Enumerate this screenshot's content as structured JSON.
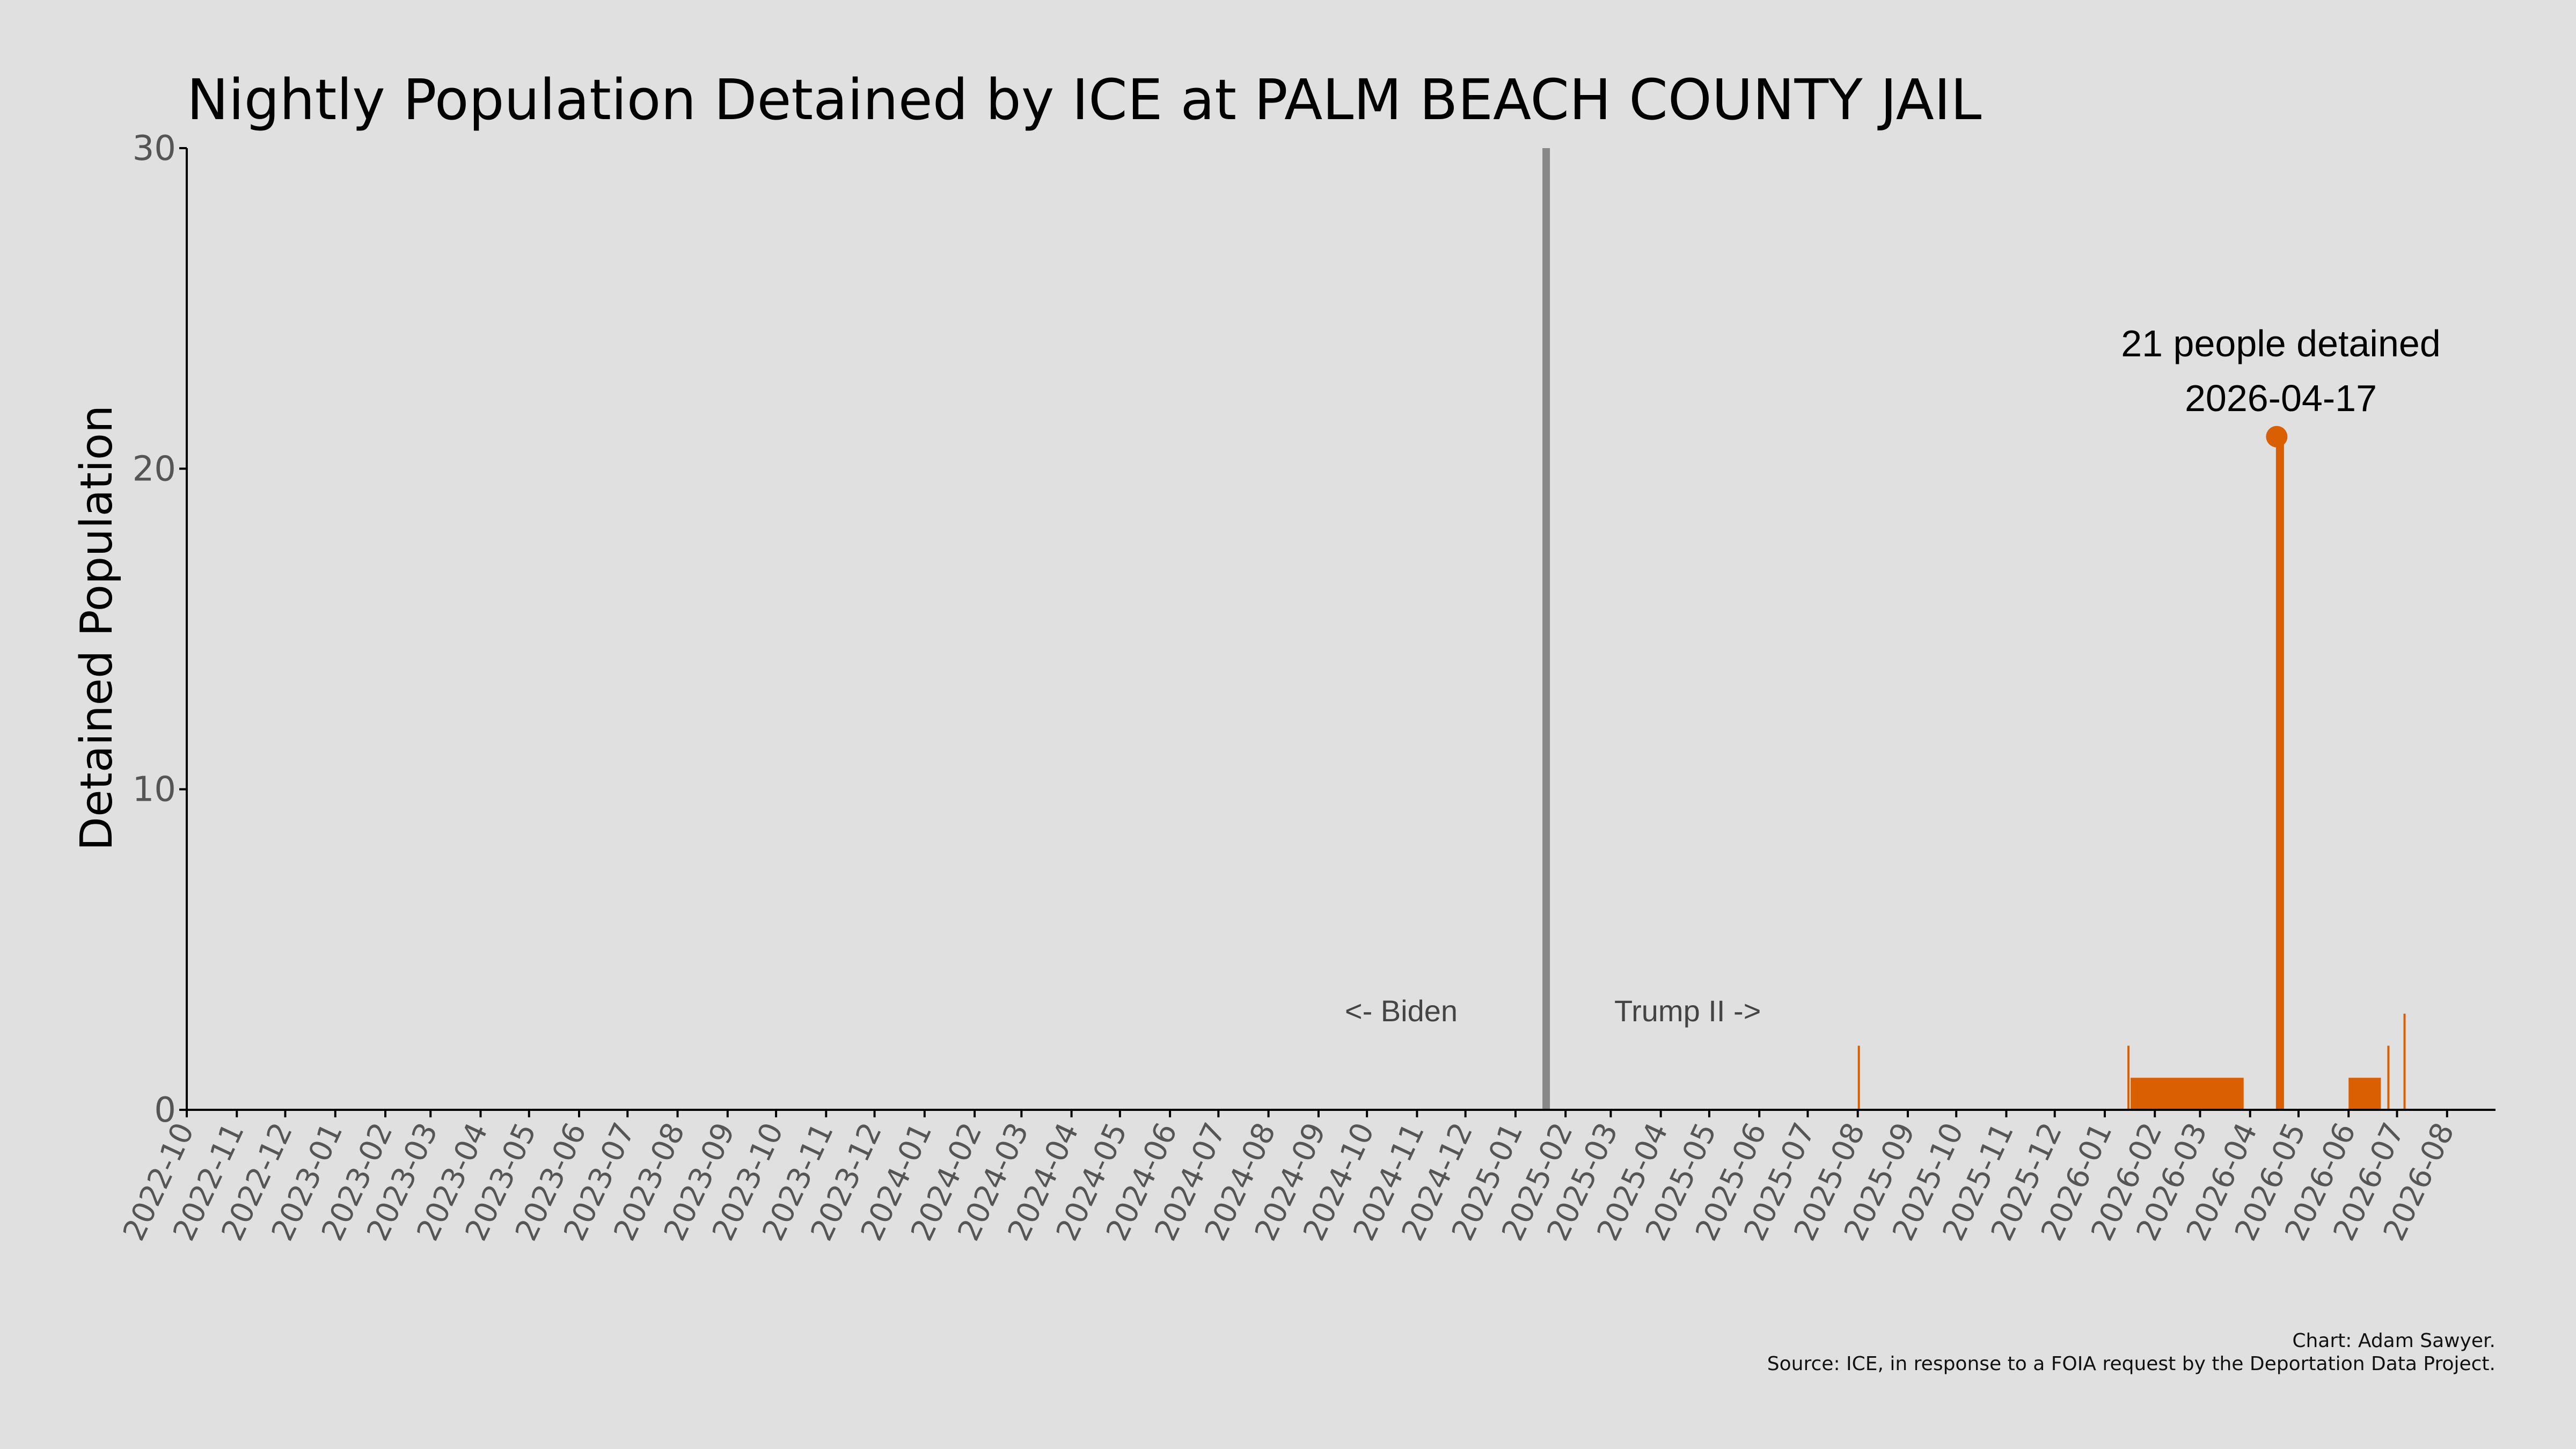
{
  "chart_data": {
    "type": "bar",
    "title": "Nightly Population Detained by ICE at PALM BEACH COUNTY JAIL",
    "xlabel": "",
    "ylabel": "Detained Population",
    "ylim": [
      0,
      30
    ],
    "yticks": [
      0,
      10,
      20,
      30
    ],
    "xlim": [
      "2022-10-01",
      "2026-08-31"
    ],
    "xticks": [
      "2022-10",
      "2022-11",
      "2022-12",
      "2023-01",
      "2023-02",
      "2023-03",
      "2023-04",
      "2023-05",
      "2023-06",
      "2023-07",
      "2023-08",
      "2023-09",
      "2023-10",
      "2023-11",
      "2023-12",
      "2024-01",
      "2024-02",
      "2024-03",
      "2024-04",
      "2024-05",
      "2024-06",
      "2024-07",
      "2024-08",
      "2024-09",
      "2024-10",
      "2024-11",
      "2024-12",
      "2025-01",
      "2025-02",
      "2025-03",
      "2025-04",
      "2025-05",
      "2025-06",
      "2025-07",
      "2025-08",
      "2025-09",
      "2025-10",
      "2025-11",
      "2025-12",
      "2026-01",
      "2026-02",
      "2026-03",
      "2026-04",
      "2026-05",
      "2026-06",
      "2026-07",
      "2026-08"
    ],
    "grid": false,
    "series": [
      {
        "color": "#d95f02",
        "bars": [
          {
            "start": "2025-08-01",
            "end": "2025-08-01",
            "value": 2
          },
          {
            "start": "2026-01-15",
            "end": "2026-01-15",
            "value": 2
          },
          {
            "start": "2026-01-17",
            "end": "2026-03-27",
            "value": 1
          },
          {
            "start": "2026-04-17",
            "end": "2026-04-21",
            "value": 21
          },
          {
            "start": "2026-06-01",
            "end": "2026-06-20",
            "value": 1
          },
          {
            "start": "2026-06-25",
            "end": "2026-06-25",
            "value": 2
          },
          {
            "start": "2026-07-05",
            "end": "2026-07-05",
            "value": 3
          }
        ]
      }
    ],
    "reference_line": {
      "date": "2025-01-20",
      "color": "#888888"
    },
    "era_labels": {
      "left": "<- Biden",
      "right": "Trump II ->"
    },
    "peak": {
      "date": "2026-04-17",
      "value": 21,
      "label": "21 people detained",
      "date_label": "2026-04-17"
    },
    "credits": [
      "Chart: Adam Sawyer.",
      "Source: ICE, in response to a FOIA request by the Deportation Data Project."
    ]
  }
}
